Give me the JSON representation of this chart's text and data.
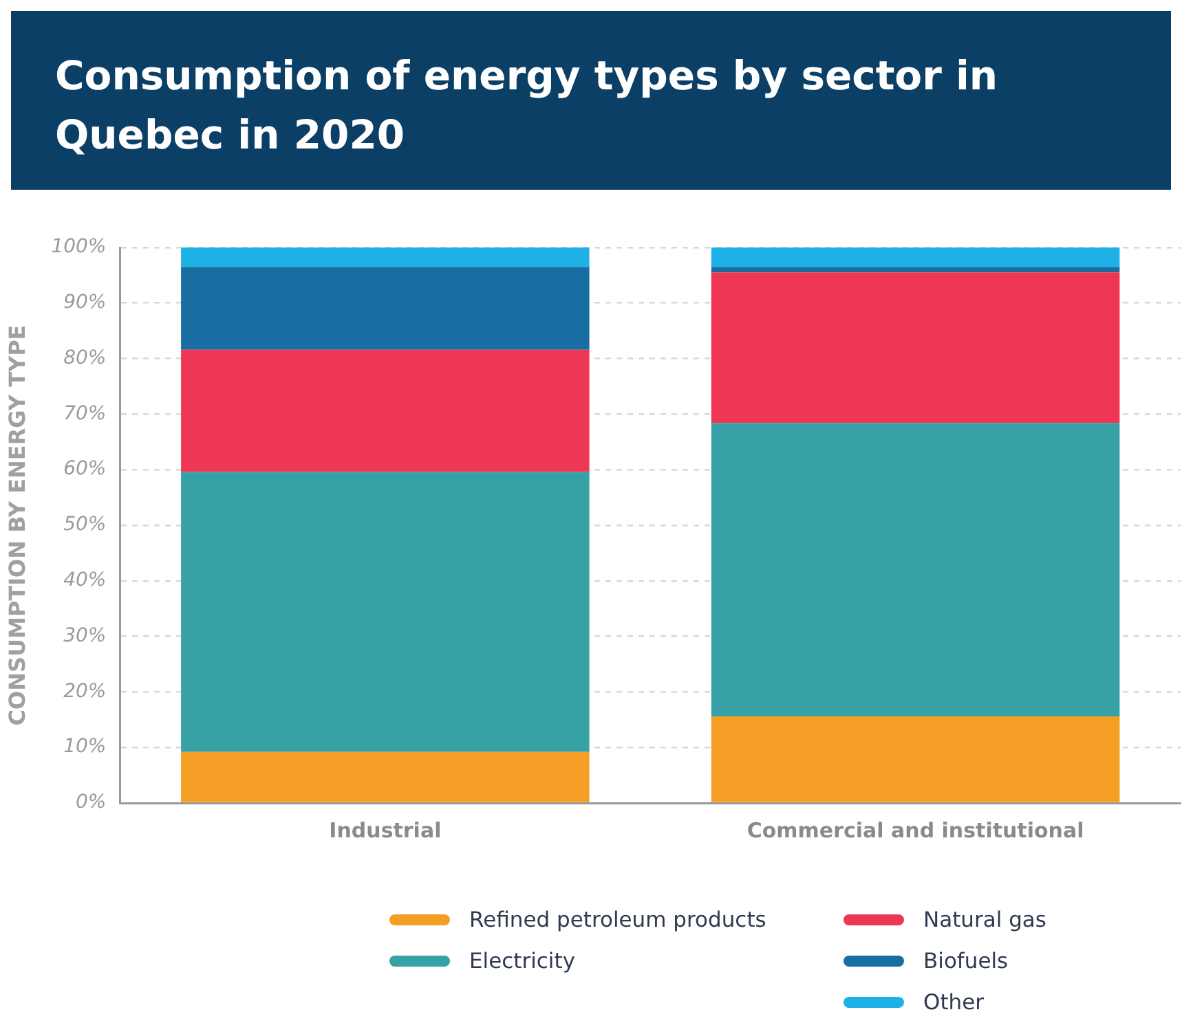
{
  "chart_data": {
    "type": "bar",
    "title": "Consumption of energy types by sector in Quebec in 2020",
    "ylabel": "CONSUMPTION BY ENERGY TYPE",
    "categories": [
      "Industrial",
      "Commercial and institutional"
    ],
    "stacked": true,
    "series": [
      {
        "name": "Refined petroleum products",
        "color": "#f59e25",
        "values": [
          9.2,
          15.6
        ]
      },
      {
        "name": "Electricity",
        "color": "#36a2a6",
        "values": [
          50.4,
          52.8
        ]
      },
      {
        "name": "Natural gas",
        "color": "#ee3754",
        "values": [
          22,
          27.1
        ]
      },
      {
        "name": "Biofuels",
        "color": "#186ea3",
        "values": [
          14.9,
          1
        ]
      },
      {
        "name": "Other",
        "color": "#1eb1e6",
        "values": [
          3.5,
          3.5
        ]
      }
    ],
    "ylim": [
      0,
      100
    ],
    "yticks": [
      {
        "value": 0,
        "label": "0%"
      },
      {
        "value": 10,
        "label": "10%"
      },
      {
        "value": 20,
        "label": "20%"
      },
      {
        "value": 30,
        "label": "30%"
      },
      {
        "value": 40,
        "label": "40%"
      },
      {
        "value": 50,
        "label": "50%"
      },
      {
        "value": 60,
        "label": "60%"
      },
      {
        "value": 70,
        "label": "70%"
      },
      {
        "value": 80,
        "label": "80%"
      },
      {
        "value": 90,
        "label": "90%"
      },
      {
        "value": 100,
        "label": "100%"
      }
    ],
    "grid": "y",
    "legend": "bottom"
  }
}
